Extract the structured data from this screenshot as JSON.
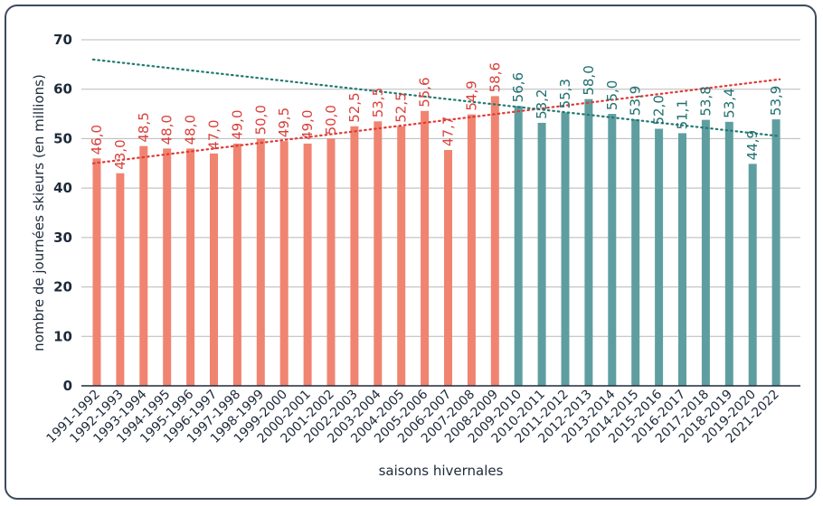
{
  "chart_data": {
    "type": "bar",
    "title": "",
    "xlabel": "saisons hivernales",
    "ylabel": "nombre de journées skieurs (en millions)",
    "ylim": [
      0,
      70
    ],
    "yticks": [
      0,
      10,
      20,
      30,
      40,
      50,
      60,
      70
    ],
    "grid": true,
    "legend": "none",
    "categories": [
      "1991-1992",
      "1992-1993",
      "1993-1994",
      "1994-1995",
      "1995-1996",
      "1996-1997",
      "1997-1998",
      "1998-1999",
      "1999-2000",
      "2000-2001",
      "2001-2002",
      "2002-2003",
      "2003-2004",
      "2004-2005",
      "2005-2006",
      "2006-2007",
      "2007-2008",
      "2008-2009",
      "2009-2010",
      "2010-2011",
      "2011-2012",
      "2012-2013",
      "2013-2014",
      "2014-2015",
      "2015-2016",
      "2016-2017",
      "2017-2018",
      "2018-2019",
      "2019-2020",
      "2021-2022"
    ],
    "values": [
      46.0,
      43.0,
      48.5,
      48.0,
      48.0,
      47.0,
      49.0,
      50.0,
      49.5,
      49.0,
      50.0,
      52.5,
      53.5,
      52.5,
      55.6,
      47.7,
      54.9,
      58.6,
      56.6,
      53.2,
      55.3,
      58.0,
      55.0,
      53.9,
      52.0,
      51.1,
      53.8,
      53.4,
      44.9,
      53.9
    ],
    "value_labels": [
      "46,0",
      "43,0",
      "48,5",
      "48,0",
      "48,0",
      "47,0",
      "49,0",
      "50,0",
      "49,5",
      "49,0",
      "50,0",
      "52,5",
      "53,5",
      "52,5",
      "55,6",
      "47,7",
      "54,9",
      "58,6",
      "56,6",
      "53,2",
      "55,3",
      "58,0",
      "55,0",
      "53,9",
      "52,0",
      "51,1",
      "53,8",
      "53,4",
      "44,9",
      "53,9"
    ],
    "series_split_index": 18,
    "colors": {
      "first_period_bar": "#f08470",
      "first_period_label": "#d9403a",
      "second_period_bar": "#5f9ea0",
      "second_period_label": "#1f6f6e",
      "trend_first": "#e03a36",
      "trend_second": "#1f7a72",
      "grid": "#b8b8b8",
      "axis": "#1e2a3a",
      "frame": "#3d4a5c"
    },
    "trendlines": [
      {
        "from_index": 0,
        "to_index": 29,
        "y_start": 45.0,
        "y_end": 62.0,
        "color": "#e03a36"
      },
      {
        "from_index": 0,
        "to_index": 29,
        "y_start": 66.0,
        "y_end": 50.5,
        "color": "#1f7a72"
      }
    ]
  }
}
